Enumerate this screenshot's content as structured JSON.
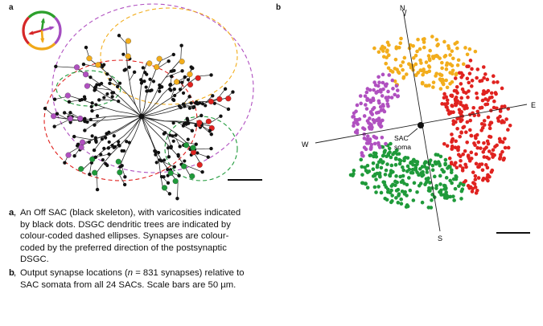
{
  "panel_a": {
    "letter": "a",
    "direction_colors": {
      "north": "#2ca02c",
      "west": "#d62728",
      "east": "#a44cc0",
      "south": "#f0a818"
    }
  },
  "panel_b": {
    "letter": "b",
    "compass": {
      "north": "N",
      "south": "S",
      "east": "E",
      "west": "W"
    },
    "soma_label_1": "SAC",
    "soma_label_2": "soma"
  },
  "caption": {
    "a_letter": "a",
    "a_sep": ", ",
    "a_text": "An Off SAC (black skeleton), with varicosities indicated by black dots. DSGC dendritic trees are indicated by colour-coded dashed ellipses. Synapses are colour-coded by the preferred direction of the postsynaptic DSGC.",
    "b_letter": "b",
    "b_sep": ", ",
    "b_text_pre": "Output synapse locations (",
    "b_n": "n",
    "b_text_post": " = 831 synapses) relative to SAC somata from all 24 SACs. Scale bars are 50 µm."
  },
  "colors": {
    "green": "#1f9a3a",
    "red": "#e0221f",
    "purple": "#b050c0",
    "orange": "#f2ad1c",
    "black": "#111111"
  }
}
